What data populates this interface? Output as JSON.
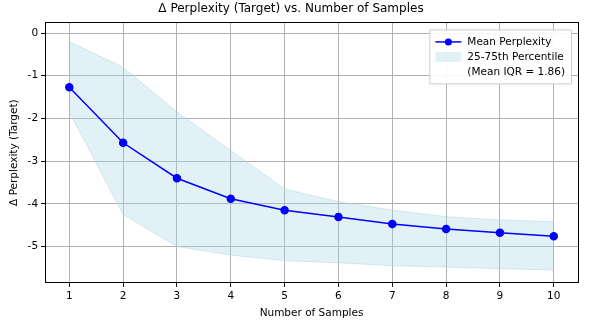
{
  "chart_data": {
    "type": "line",
    "title": "Δ Perplexity (Target) vs. Number of Samples",
    "x_label": "Number of Samples",
    "y_label": "Δ Perplexity (Target)",
    "x": [
      1,
      2,
      3,
      4,
      5,
      6,
      7,
      8,
      9,
      10
    ],
    "series": [
      {
        "name": "Mean Perplexity",
        "type": "line",
        "color": "#0000ff",
        "marker": "circle",
        "line_style": "solid",
        "values": [
          -1.27,
          -2.57,
          -3.4,
          -3.88,
          -4.15,
          -4.31,
          -4.47,
          -4.59,
          -4.68,
          -4.76
        ]
      },
      {
        "name": "25-75th Percentile",
        "type": "area",
        "color": "#add8e6",
        "lower": [
          -1.85,
          -4.25,
          -5.0,
          -5.2,
          -5.33,
          -5.38,
          -5.45,
          -5.48,
          -5.52,
          -5.55
        ],
        "upper": [
          -0.2,
          -0.8,
          -1.85,
          -2.75,
          -3.65,
          -3.95,
          -4.15,
          -4.3,
          -4.38,
          -4.42
        ]
      }
    ],
    "annotation": "(Mean IQR = 1.86)",
    "xlim": [
      0.55,
      10.45
    ],
    "xticks": [
      1,
      2,
      3,
      4,
      5,
      6,
      7,
      8,
      9,
      10
    ],
    "ylim": [
      -5.85,
      0.25
    ],
    "yticks": [
      -5,
      -4,
      -3,
      -2,
      -1,
      0
    ],
    "grid": true,
    "legend": "upper right"
  }
}
